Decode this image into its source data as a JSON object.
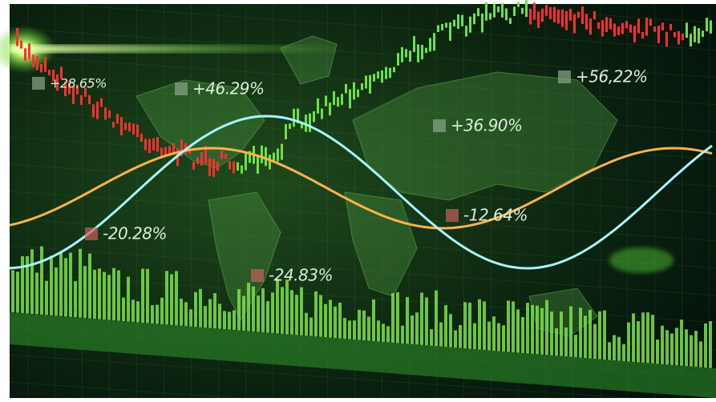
{
  "labels": [
    "+28.65%",
    "+46.29%",
    "+56,22%",
    "+36.90%",
    "-20.28%",
    "-12.64%",
    "-24.83%"
  ]
}
